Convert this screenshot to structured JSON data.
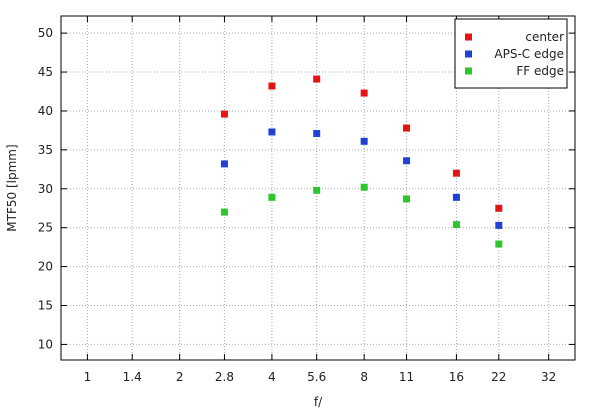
{
  "chart_data": {
    "type": "scatter",
    "title": "",
    "xlabel": "f/",
    "ylabel": "MTF50 [lpmm]",
    "x_scale": "log",
    "x_ticks": [
      "1",
      "1.4",
      "2",
      "2.8",
      "4",
      "5.6",
      "8",
      "11",
      "16",
      "22",
      "32"
    ],
    "y_ticks": [
      "10",
      "15",
      "20",
      "25",
      "30",
      "35",
      "40",
      "45",
      "50"
    ],
    "xlim": [
      0.82,
      39.0
    ],
    "ylim": [
      8,
      52.2
    ],
    "grid": true,
    "legend": {
      "position": "top-right"
    },
    "series": [
      {
        "name": "center",
        "color": "#e41414",
        "x": [
          2.8,
          4,
          5.6,
          8,
          11,
          16,
          22
        ],
        "y": [
          39.6,
          43.2,
          44.1,
          42.3,
          37.8,
          32.0,
          27.5
        ]
      },
      {
        "name": "APS-C edge",
        "color": "#2041d4",
        "x": [
          2.8,
          4,
          5.6,
          8,
          11,
          16,
          22
        ],
        "y": [
          33.2,
          37.3,
          37.1,
          36.1,
          33.6,
          28.9,
          25.3
        ]
      },
      {
        "name": "FF edge",
        "color": "#2dc62d",
        "x": [
          2.8,
          4,
          5.6,
          8,
          11,
          16,
          22
        ],
        "y": [
          27.0,
          28.9,
          29.8,
          30.2,
          28.7,
          25.4,
          22.9
        ]
      }
    ]
  }
}
